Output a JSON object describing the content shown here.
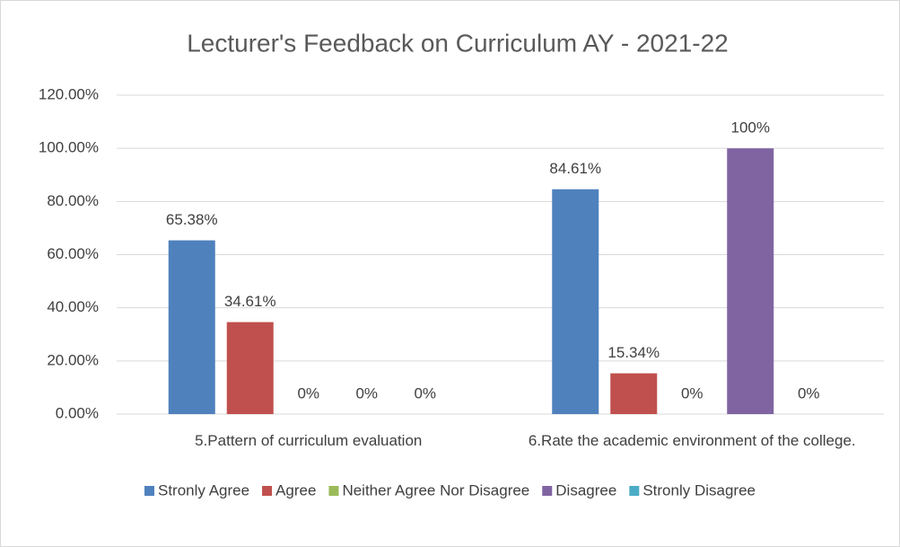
{
  "chart_data": {
    "type": "bar",
    "title": "Lecturer's Feedback on Curriculum AY - 2021-22",
    "categories": [
      "5.Pattern of curriculum evaluation",
      "6.Rate the academic environment of the college."
    ],
    "series": [
      {
        "name": "Stronly Agree",
        "color": "#4f81bd",
        "values": [
          65.38,
          84.61
        ],
        "value_labels": [
          "65.38%",
          "84.61%"
        ]
      },
      {
        "name": "Agree",
        "color": "#c0504d",
        "values": [
          34.61,
          15.34
        ],
        "value_labels": [
          "34.61%",
          "15.34%"
        ]
      },
      {
        "name": "Neither Agree Nor Disagree",
        "color": "#9bbb59",
        "values": [
          0,
          0
        ],
        "value_labels": [
          "0%",
          "0%"
        ]
      },
      {
        "name": "Disagree",
        "color": "#8064a2",
        "values": [
          0,
          100
        ],
        "value_labels": [
          "0%",
          "100%"
        ]
      },
      {
        "name": "Stronly Disagree",
        "color": "#4bacc6",
        "values": [
          0,
          0
        ],
        "value_labels": [
          "0%",
          "0%"
        ]
      }
    ],
    "ylim": [
      0,
      120
    ],
    "yticks": [
      {
        "value": 0,
        "label": "0.00%"
      },
      {
        "value": 20,
        "label": "20.00%"
      },
      {
        "value": 40,
        "label": "40.00%"
      },
      {
        "value": 60,
        "label": "60.00%"
      },
      {
        "value": 80,
        "label": "80.00%"
      },
      {
        "value": 100,
        "label": "100.00%"
      },
      {
        "value": 120,
        "label": "120.00%"
      }
    ],
    "grid": true,
    "legend": "bottom"
  }
}
